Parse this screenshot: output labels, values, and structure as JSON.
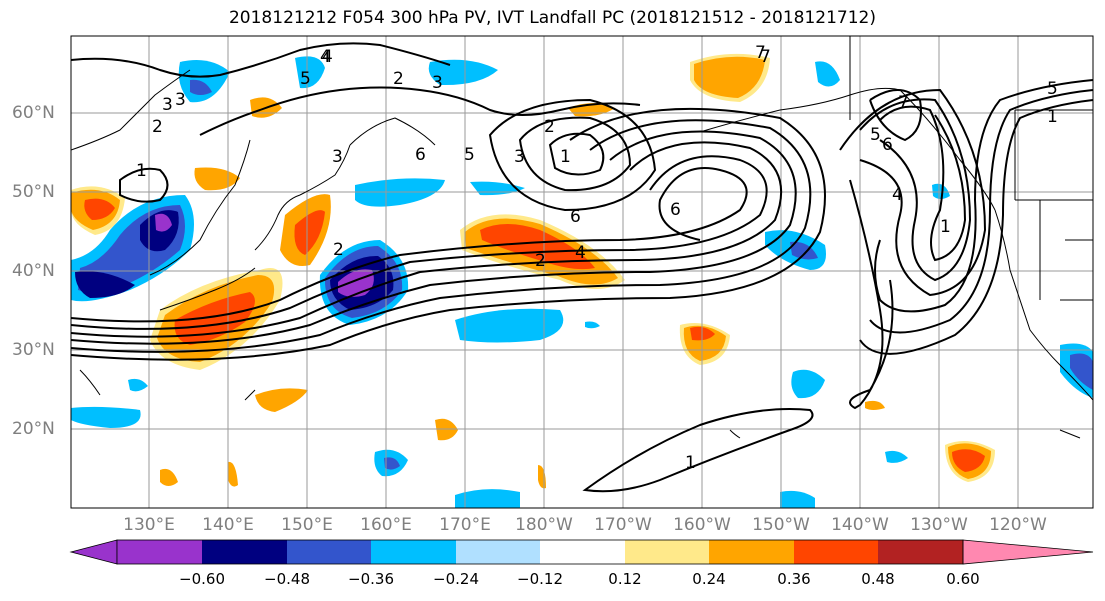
{
  "title": "2018121212 F054 300 hPa PV, IVT Landfall PC (2018121512 - 2018121712)",
  "map": {
    "lat_labels": [
      "60°N",
      "50°N",
      "40°N",
      "30°N",
      "20°N"
    ],
    "lon_labels": [
      "130°E",
      "140°E",
      "150°E",
      "160°E",
      "170°E",
      "180°W",
      "170°W",
      "160°W",
      "150°W",
      "140°W",
      "130°W",
      "120°W"
    ],
    "contour_labels": [
      "1",
      "2",
      "3",
      "4",
      "5",
      "6",
      "7",
      "1",
      "2",
      "3",
      "2",
      "3",
      "6",
      "5",
      "4",
      "3",
      "2",
      "1",
      "6",
      "4",
      "2",
      "7",
      "6",
      "5",
      "4",
      "3",
      "1",
      "1",
      "5",
      "7"
    ]
  },
  "colorbar": {
    "ticks": [
      "−0.60",
      "−0.48",
      "−0.36",
      "−0.24",
      "−0.12",
      "0.12",
      "0.24",
      "0.36",
      "0.48",
      "0.60"
    ],
    "colors": [
      "#9933cc",
      "#000080",
      "#3355cc",
      "#00bfff",
      "#b0e0ff",
      "#ffffff",
      "#ffe98a",
      "#ffa500",
      "#ff4500",
      "#b22222",
      "#ff88b0"
    ]
  }
}
